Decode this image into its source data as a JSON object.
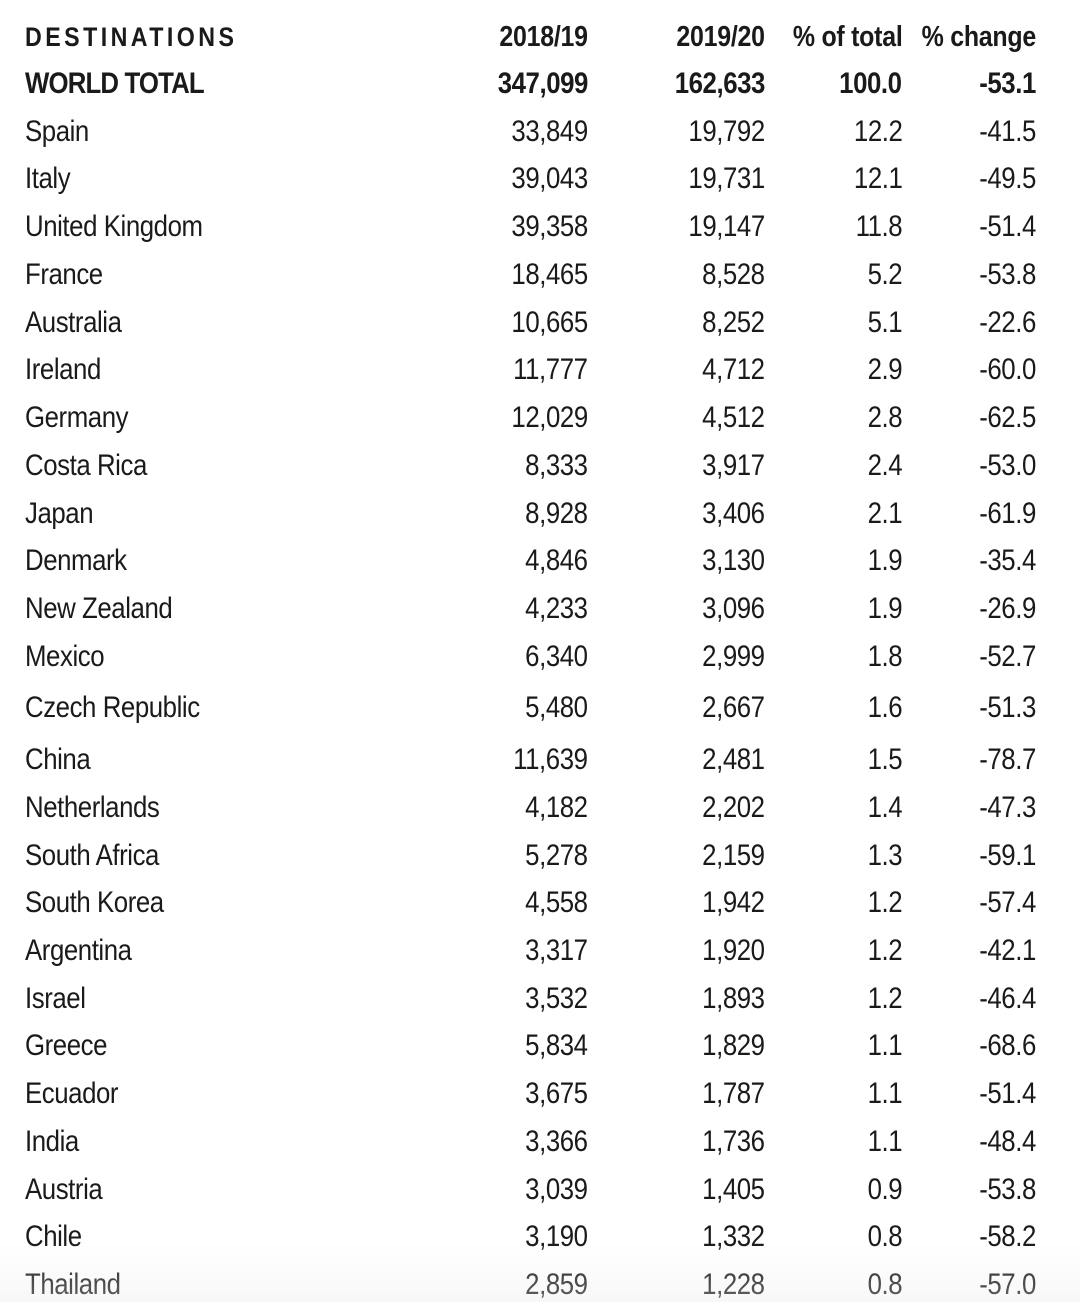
{
  "table": {
    "headers": [
      "DESTINATIONS",
      "2018/19",
      "2019/20",
      "% of total",
      "% change"
    ],
    "total": [
      "WORLD TOTAL",
      "347,099",
      "162,633",
      "100.0",
      "-53.1"
    ],
    "rows": [
      [
        "Spain",
        "33,849",
        "19,792",
        "12.2",
        "-41.5"
      ],
      [
        "Italy",
        "39,043",
        "19,731",
        "12.1",
        "-49.5"
      ],
      [
        "United Kingdom",
        "39,358",
        "19,147",
        "11.8",
        "-51.4"
      ],
      [
        "France",
        "18,465",
        "8,528",
        "5.2",
        "-53.8"
      ],
      [
        "Australia",
        "10,665",
        "8,252",
        "5.1",
        "-22.6"
      ],
      [
        "Ireland",
        "11,777",
        "4,712",
        "2.9",
        "-60.0"
      ],
      [
        "Germany",
        "12,029",
        "4,512",
        "2.8",
        "-62.5"
      ],
      [
        "Costa Rica",
        "8,333",
        "3,917",
        "2.4",
        "-53.0"
      ],
      [
        "Japan",
        "8,928",
        "3,406",
        "2.1",
        "-61.9"
      ],
      [
        "Denmark",
        "4,846",
        "3,130",
        "1.9",
        "-35.4"
      ],
      [
        "New Zealand",
        "4,233",
        "3,096",
        "1.9",
        "-26.9"
      ],
      [
        "Mexico",
        "6,340",
        "2,999",
        "1.8",
        "-52.7"
      ],
      [
        "Czech Republic",
        "5,480",
        "2,667",
        "1.6",
        "-51.3"
      ],
      [
        "China",
        "11,639",
        "2,481",
        "1.5",
        "-78.7"
      ],
      [
        "Netherlands",
        "4,182",
        "2,202",
        "1.4",
        "-47.3"
      ],
      [
        "South Africa",
        "5,278",
        "2,159",
        "1.3",
        "-59.1"
      ],
      [
        "South Korea",
        "4,558",
        "1,942",
        "1.2",
        "-57.4"
      ],
      [
        "Argentina",
        "3,317",
        "1,920",
        "1.2",
        "-42.1"
      ],
      [
        "Israel",
        "3,532",
        "1,893",
        "1.2",
        "-46.4"
      ],
      [
        "Greece",
        "5,834",
        "1,829",
        "1.1",
        "-68.6"
      ],
      [
        "Ecuador",
        "3,675",
        "1,787",
        "1.1",
        "-51.4"
      ],
      [
        "India",
        "3,366",
        "1,736",
        "1.1",
        "-48.4"
      ],
      [
        "Austria",
        "3,039",
        "1,405",
        "0.9",
        "-53.8"
      ],
      [
        "Chile",
        "3,190",
        "1,332",
        "0.8",
        "-58.2"
      ],
      [
        "Thailand",
        "2,859",
        "1,228",
        "0.8",
        "-57.0"
      ]
    ]
  }
}
